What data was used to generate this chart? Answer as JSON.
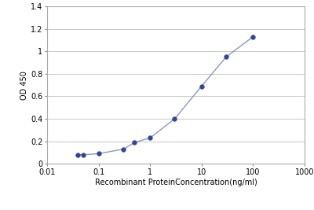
{
  "x": [
    0.04,
    0.05,
    0.1,
    0.3,
    0.5,
    1.0,
    3.0,
    10.0,
    30.0,
    100.0
  ],
  "y": [
    0.08,
    0.08,
    0.09,
    0.13,
    0.19,
    0.23,
    0.4,
    0.69,
    0.95,
    1.13
  ],
  "line_color": "#8899bb",
  "marker_color": "#334499",
  "xlabel": "Recombinant ProteinConcentration(ng/ml)",
  "ylabel": "OD 450",
  "xlim_log": [
    0.01,
    1000
  ],
  "ylim": [
    0,
    1.4
  ],
  "yticks": [
    0,
    0.2,
    0.4,
    0.6,
    0.8,
    1.0,
    1.2,
    1.4
  ],
  "ytick_labels": [
    "0",
    "0.2",
    "0.4",
    "0.6",
    "0.8",
    "1",
    "1.2",
    "1.4"
  ],
  "xticks": [
    0.01,
    0.1,
    1,
    10,
    100,
    1000
  ],
  "xtick_labels": [
    "0.01",
    "0.1",
    "1",
    "10",
    "100",
    "1000"
  ],
  "grid_color": "#c8c8c8",
  "background_color": "#ffffff",
  "plot_bg_color": "#ffffff",
  "marker_size": 4,
  "line_width": 1.0,
  "xlabel_fontsize": 7,
  "ylabel_fontsize": 7,
  "tick_fontsize": 7
}
